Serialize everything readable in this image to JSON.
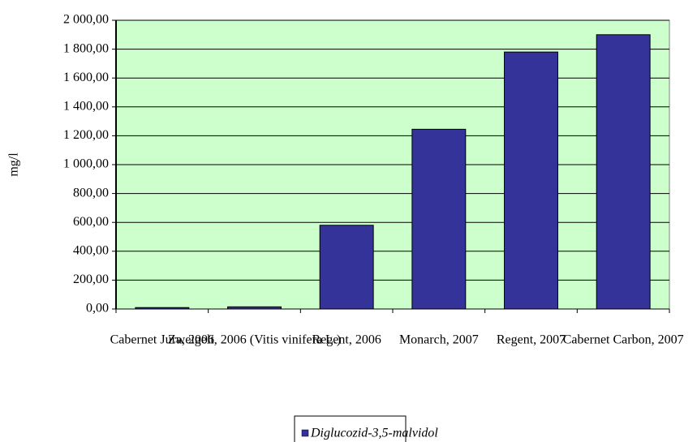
{
  "chart_data": {
    "type": "bar",
    "y_label": "mg/l",
    "categories": [
      "Cabernet Jura, 2006",
      "Zweigelt, 2006 (Vitis vinifera L.)",
      "Regent, 2006",
      "Monarch, 2007",
      "Regent, 2007",
      "Cabernet Carbon, 2007"
    ],
    "series": [
      {
        "name": "Diglucozid-3,5-malvidol",
        "color": "#333399",
        "values": [
          10,
          15,
          580,
          1245,
          1780,
          1900
        ]
      }
    ],
    "ylim": [
      0,
      2000
    ],
    "yticks": [
      {
        "value": 0,
        "label": "0,00"
      },
      {
        "value": 200,
        "label": "200,00"
      },
      {
        "value": 400,
        "label": "400,00"
      },
      {
        "value": 600,
        "label": "600,00"
      },
      {
        "value": 800,
        "label": "800,00"
      },
      {
        "value": 1000,
        "label": "1 000,00"
      },
      {
        "value": 1200,
        "label": "1 200,00"
      },
      {
        "value": 1400,
        "label": "1 400,00"
      },
      {
        "value": 1600,
        "label": "1 600,00"
      },
      {
        "value": 1800,
        "label": "1 800,00"
      },
      {
        "value": 2000,
        "label": "2 000,00"
      }
    ],
    "grid": true,
    "plot_background": "#ccffcc",
    "legend": "bottom"
  }
}
